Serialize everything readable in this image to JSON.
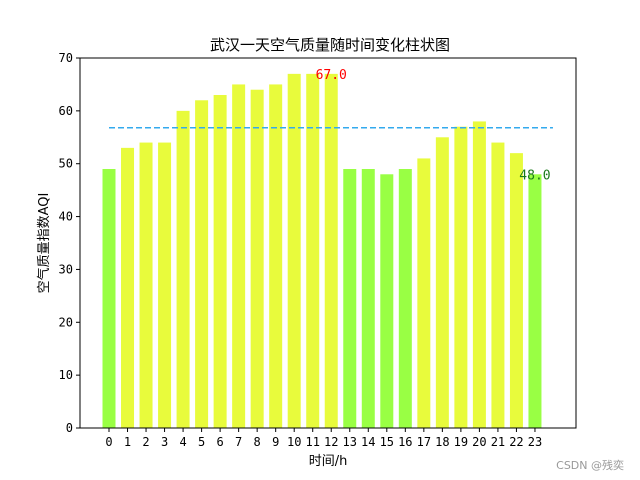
{
  "chart_data": {
    "type": "bar",
    "title": "武汉一天空气质量随时间变化柱状图",
    "xlabel": "时间/h",
    "ylabel": "空气质量指数AQI",
    "categories": [
      "0",
      "1",
      "2",
      "3",
      "4",
      "5",
      "6",
      "7",
      "8",
      "9",
      "10",
      "11",
      "12",
      "13",
      "14",
      "15",
      "16",
      "17",
      "18",
      "19",
      "20",
      "21",
      "22",
      "23"
    ],
    "values": [
      49,
      53,
      54,
      54,
      60,
      62,
      63,
      65,
      64,
      65,
      67,
      67,
      67,
      49,
      49,
      48,
      49,
      51,
      55,
      57,
      58,
      54,
      52,
      48
    ],
    "ylim": [
      0,
      70
    ],
    "yticks": [
      0,
      10,
      20,
      30,
      40,
      50,
      60,
      70
    ],
    "mean_line": 56.8,
    "grid": false,
    "colors": {
      "bar_yellow": "#e8fb3c",
      "bar_green": "#99ff44",
      "mean_line": "#33aaee",
      "max_label": "#ff0000",
      "min_label": "#1a7a1a"
    },
    "green_bars": [
      0,
      13,
      14,
      15,
      16,
      23
    ],
    "annotations": [
      {
        "text": "67.0",
        "index": 12,
        "value": 67,
        "color": "#ff0000"
      },
      {
        "text": "48.0",
        "index": 23,
        "value": 48,
        "color": "#1a7a1a"
      }
    ]
  },
  "watermark": "CSDN @残奕"
}
